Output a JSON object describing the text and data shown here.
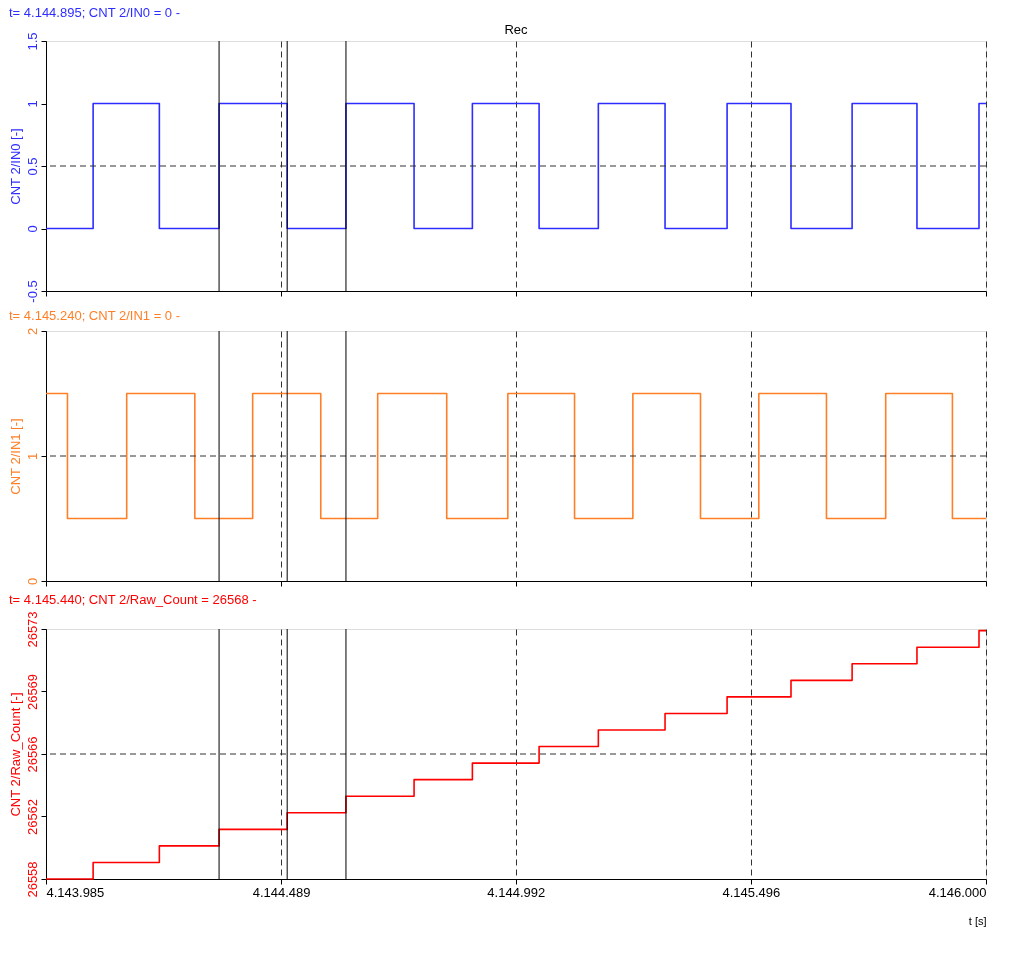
{
  "chart_data": [
    {
      "type": "step",
      "title": "t= 4.144.895; CNT 2/IN0 = 0 -",
      "ylabel": "CNT 2/IN0 [-]",
      "annotations": [
        "Rec"
      ],
      "x": [
        4143985,
        4144086,
        4144228,
        4144356,
        4144502,
        4144628,
        4144774,
        4144899,
        4145042,
        4145169,
        4145312,
        4145445,
        4145582,
        4145713,
        4145852,
        4145985,
        4146000
      ],
      "series": [
        {
          "color": "#2d2dff",
          "values": [
            0,
            1,
            0,
            1,
            0,
            1,
            0,
            1,
            0,
            1,
            0,
            1,
            0,
            1,
            0,
            1,
            1
          ]
        }
      ],
      "xlim": [
        4143985,
        4146000
      ],
      "xticks": [
        4143985,
        4144489,
        4144992,
        4145496,
        4146000
      ],
      "ylim": [
        -0.5,
        1.5
      ],
      "yticks": [
        -0.5,
        0,
        0.5,
        1,
        1.5
      ],
      "tick_labels": "y",
      "grid": "x",
      "ref_lines": [
        {
          "axis": "y",
          "value": 0.5,
          "line_style": "dashed",
          "color": "#333333"
        },
        {
          "axis": "x",
          "value": 4144356,
          "color": "#000000"
        },
        {
          "axis": "x",
          "value": 4144502,
          "color": "#000000"
        },
        {
          "axis": "x",
          "value": 4144628,
          "color": "#000000"
        }
      ]
    },
    {
      "type": "step",
      "title": "t= 4.145.240; CNT 2/IN1 = 0 -",
      "ylabel": "CNT 2/IN1 [-]",
      "x": [
        4143985,
        4144031,
        4144158,
        4144304,
        4144428,
        4144574,
        4144696,
        4144844,
        4144975,
        4145118,
        4145243,
        4145388,
        4145513,
        4145658,
        4145785,
        4145928,
        4146000
      ],
      "series": [
        {
          "color": "#ff7f27",
          "values": [
            1.5,
            0.5,
            1.5,
            0.5,
            1.5,
            0.5,
            1.5,
            0.5,
            1.5,
            0.5,
            1.5,
            0.5,
            1.5,
            0.5,
            1.5,
            0.5,
            0.5
          ]
        }
      ],
      "xlim": [
        4143985,
        4146000
      ],
      "xticks": [
        4143985,
        4144489,
        4144992,
        4145496,
        4146000
      ],
      "ylim": [
        0,
        2
      ],
      "yticks": [
        0,
        1,
        2
      ],
      "tick_labels": "y",
      "grid": "x",
      "ref_lines": [
        {
          "axis": "y",
          "value": 1,
          "line_style": "dashed",
          "color": "#333333"
        },
        {
          "axis": "x",
          "value": 4144356,
          "color": "#000000"
        },
        {
          "axis": "x",
          "value": 4144502,
          "color": "#000000"
        },
        {
          "axis": "x",
          "value": 4144628,
          "color": "#000000"
        }
      ]
    },
    {
      "type": "step",
      "title": "t= 4.145.440; CNT 2/Raw_Count = 26568 -",
      "ylabel": "CNT 2/Raw_Count [-]",
      "xlabel": "t [s]",
      "x": [
        4143985,
        4144086,
        4144228,
        4144356,
        4144502,
        4144628,
        4144774,
        4144899,
        4145042,
        4145169,
        4145312,
        4145445,
        4145582,
        4145713,
        4145852,
        4145985,
        4146000
      ],
      "series": [
        {
          "color": "#ff0000",
          "values": [
            26558,
            26559,
            26560,
            26561,
            26562,
            26563,
            26564,
            26565,
            26566,
            26567,
            26568,
            26569,
            26570,
            26571,
            26572,
            26573,
            26573
          ]
        }
      ],
      "xlim": [
        4143985,
        4146000
      ],
      "xticks": [
        {
          "value": 4143985,
          "label": "4.143.985"
        },
        {
          "value": 4144489,
          "label": "4.144.489"
        },
        {
          "value": 4144992,
          "label": "4.144.992"
        },
        {
          "value": 4145496,
          "label": "4.145.496"
        },
        {
          "value": 4146000,
          "label": "4.146.000"
        }
      ],
      "ylim": [
        26558,
        26573.1
      ],
      "yticks": [
        26558,
        {
          "value": 26561.775,
          "label": "26562"
        },
        {
          "value": 26565.55,
          "label": "26566"
        },
        {
          "value": 26569.325,
          "label": "26569"
        },
        {
          "value": 26573.1,
          "label": "26573"
        }
      ],
      "grid": "x",
      "ref_lines": [
        {
          "axis": "y",
          "value": 26565.55,
          "line_style": "dashed",
          "color": "#333333"
        },
        {
          "axis": "x",
          "value": 4144356,
          "color": "#000000"
        },
        {
          "axis": "x",
          "value": 4144502,
          "color": "#000000"
        },
        {
          "axis": "x",
          "value": 4144628,
          "color": "#000000"
        }
      ]
    }
  ]
}
